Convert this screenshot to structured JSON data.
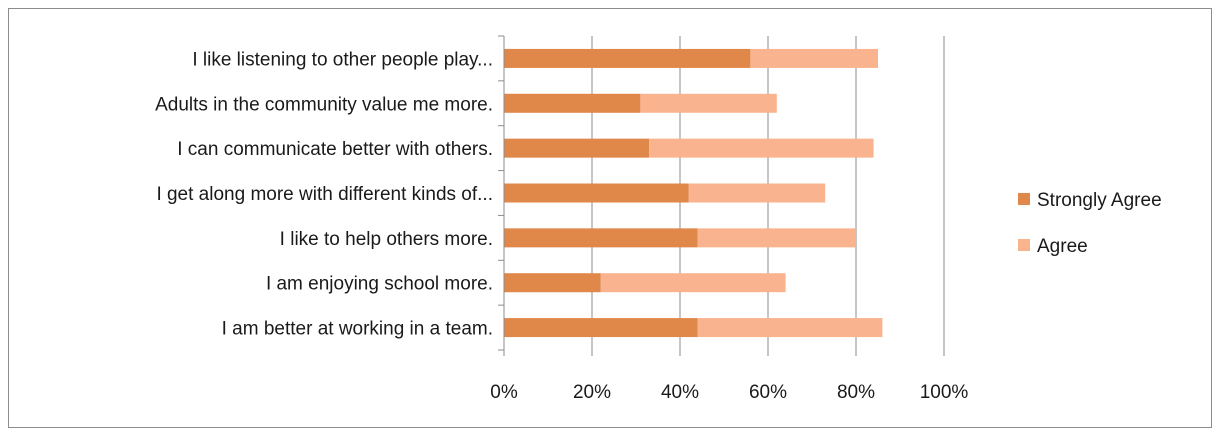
{
  "chart_data": {
    "type": "bar",
    "orientation": "horizontal",
    "stacked": true,
    "categories": [
      "I like listening to other people play...",
      "Adults in the community value me more.",
      "I can communicate better with others.",
      "I get along more with different kinds of...",
      "I like to help others more.",
      "I am enjoying school more.",
      "I am better at working in a team."
    ],
    "series": [
      {
        "name": "Strongly Agree",
        "color": "#e0874a",
        "values": [
          56,
          31,
          33,
          42,
          44,
          22,
          44
        ]
      },
      {
        "name": "Agree",
        "color": "#f9b48f",
        "values": [
          29,
          31,
          51,
          31,
          36,
          42,
          42
        ]
      }
    ],
    "xlim": [
      0,
      100
    ],
    "x_ticks": [
      "0%",
      "20%",
      "40%",
      "60%",
      "80%",
      "100%"
    ],
    "grid": true,
    "legend_position": "right",
    "title": "",
    "xlabel": "",
    "ylabel": ""
  }
}
